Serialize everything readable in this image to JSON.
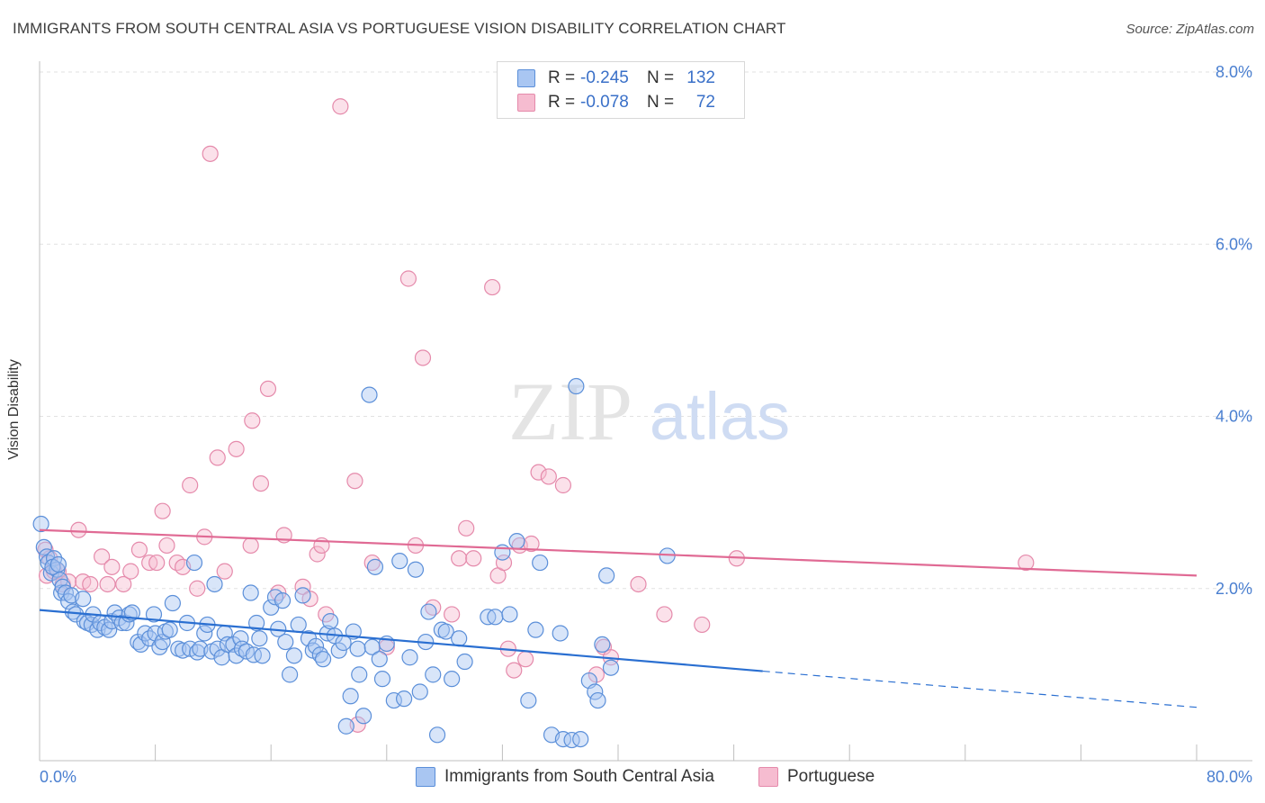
{
  "header": {
    "title": "IMMIGRANTS FROM SOUTH CENTRAL ASIA VS PORTUGUESE VISION DISABILITY CORRELATION CHART",
    "source": "Source: ZipAtlas.com"
  },
  "watermark": {
    "zip": "ZIP",
    "atlas": "atlas"
  },
  "legend": {
    "rows": [
      {
        "r_label": "R =",
        "r_value": "-0.245",
        "n_label": "N =",
        "n_value": "132"
      },
      {
        "r_label": "R =",
        "r_value": "-0.078",
        "n_label": "N =",
        "n_value": "72"
      }
    ]
  },
  "bottom_legend": {
    "series_a": "Immigrants from South Central Asia",
    "series_b": "Portuguese"
  },
  "colors": {
    "blue_fill": "#a9c6f2",
    "blue_stroke": "#5b8fd9",
    "blue_line": "#2a6fd1",
    "pink_fill": "#f6bcd0",
    "pink_stroke": "#e58aab",
    "pink_line": "#e06a94",
    "tick_label": "#4a7fd0",
    "grid": "#e2e2e2"
  },
  "chart_data": {
    "type": "scatter",
    "title": "IMMIGRANTS FROM SOUTH CENTRAL ASIA VS PORTUGUESE VISION DISABILITY CORRELATION CHART",
    "ylabel": "Vision Disability",
    "xlabel": "",
    "xlim": [
      0,
      80
    ],
    "ylim": [
      0,
      8.0
    ],
    "x_tick_labels": [
      "0.0%",
      "80.0%"
    ],
    "y_ticks": [
      2.0,
      4.0,
      6.0,
      8.0
    ],
    "y_tick_labels": [
      "2.0%",
      "4.0%",
      "6.0%",
      "8.0%"
    ],
    "grid": true,
    "series": [
      {
        "name": "Immigrants from South Central Asia",
        "color": "#5b8fd9",
        "r": -0.245,
        "n": 132,
        "trend": {
          "x0": 0,
          "y0": 1.75,
          "x1": 50,
          "y1": 1.04,
          "dashed_to_x": 80,
          "dashed_to_y": 0.62
        },
        "points": [
          [
            0.1,
            2.75
          ],
          [
            0.3,
            2.48
          ],
          [
            0.5,
            2.37
          ],
          [
            0.6,
            2.3
          ],
          [
            0.8,
            2.18
          ],
          [
            1.0,
            2.35
          ],
          [
            1.2,
            2.22
          ],
          [
            1.4,
            2.1
          ],
          [
            1.5,
            1.95
          ],
          [
            1.6,
            2.02
          ],
          [
            1.8,
            1.95
          ],
          [
            2.0,
            1.85
          ],
          [
            2.2,
            1.92
          ],
          [
            2.3,
            1.73
          ],
          [
            2.5,
            1.7
          ],
          [
            3.0,
            1.88
          ],
          [
            3.1,
            1.62
          ],
          [
            3.3,
            1.6
          ],
          [
            3.6,
            1.58
          ],
          [
            3.7,
            1.7
          ],
          [
            4.0,
            1.52
          ],
          [
            4.2,
            1.6
          ],
          [
            4.5,
            1.55
          ],
          [
            4.8,
            1.52
          ],
          [
            5.0,
            1.62
          ],
          [
            5.2,
            1.72
          ],
          [
            5.5,
            1.66
          ],
          [
            5.7,
            1.6
          ],
          [
            6.0,
            1.6
          ],
          [
            6.2,
            1.7
          ],
          [
            6.4,
            1.72
          ],
          [
            6.8,
            1.38
          ],
          [
            7.0,
            1.35
          ],
          [
            7.3,
            1.48
          ],
          [
            7.6,
            1.42
          ],
          [
            7.9,
            1.7
          ],
          [
            8.0,
            1.48
          ],
          [
            8.3,
            1.32
          ],
          [
            8.5,
            1.38
          ],
          [
            8.7,
            1.5
          ],
          [
            9.0,
            1.52
          ],
          [
            9.2,
            1.83
          ],
          [
            9.6,
            1.3
          ],
          [
            9.9,
            1.28
          ],
          [
            10.2,
            1.6
          ],
          [
            10.4,
            1.3
          ],
          [
            10.7,
            2.3
          ],
          [
            10.9,
            1.26
          ],
          [
            11.1,
            1.3
          ],
          [
            11.4,
            1.48
          ],
          [
            11.6,
            1.58
          ],
          [
            11.9,
            1.27
          ],
          [
            12.1,
            2.05
          ],
          [
            12.3,
            1.3
          ],
          [
            12.6,
            1.2
          ],
          [
            12.8,
            1.48
          ],
          [
            13.0,
            1.35
          ],
          [
            13.4,
            1.35
          ],
          [
            13.6,
            1.22
          ],
          [
            13.9,
            1.42
          ],
          [
            14.0,
            1.3
          ],
          [
            14.3,
            1.27
          ],
          [
            14.6,
            1.95
          ],
          [
            14.8,
            1.23
          ],
          [
            15.0,
            1.6
          ],
          [
            15.2,
            1.42
          ],
          [
            15.4,
            1.22
          ],
          [
            16.0,
            1.78
          ],
          [
            16.3,
            1.9
          ],
          [
            16.5,
            1.53
          ],
          [
            16.8,
            1.86
          ],
          [
            17.0,
            1.38
          ],
          [
            17.3,
            1.0
          ],
          [
            17.6,
            1.22
          ],
          [
            17.9,
            1.58
          ],
          [
            18.2,
            1.92
          ],
          [
            18.6,
            1.42
          ],
          [
            18.9,
            1.28
          ],
          [
            19.1,
            1.33
          ],
          [
            19.4,
            1.23
          ],
          [
            19.6,
            1.18
          ],
          [
            19.9,
            1.48
          ],
          [
            20.1,
            1.62
          ],
          [
            20.4,
            1.45
          ],
          [
            20.7,
            1.28
          ],
          [
            21.0,
            1.37
          ],
          [
            21.2,
            0.4
          ],
          [
            21.5,
            0.75
          ],
          [
            21.7,
            1.5
          ],
          [
            22.0,
            1.3
          ],
          [
            22.1,
            1.0
          ],
          [
            22.4,
            0.52
          ],
          [
            22.8,
            4.25
          ],
          [
            23.0,
            1.32
          ],
          [
            23.2,
            2.25
          ],
          [
            23.5,
            1.18
          ],
          [
            23.7,
            0.95
          ],
          [
            24.0,
            1.36
          ],
          [
            24.5,
            0.7
          ],
          [
            24.9,
            2.32
          ],
          [
            25.2,
            0.72
          ],
          [
            25.6,
            1.2
          ],
          [
            26.0,
            2.22
          ],
          [
            26.3,
            0.8
          ],
          [
            26.7,
            1.38
          ],
          [
            26.9,
            1.73
          ],
          [
            27.2,
            1.0
          ],
          [
            27.5,
            0.3
          ],
          [
            27.8,
            1.52
          ],
          [
            28.1,
            1.5
          ],
          [
            28.5,
            0.95
          ],
          [
            29.0,
            1.42
          ],
          [
            29.4,
            1.15
          ],
          [
            31.0,
            1.67
          ],
          [
            31.5,
            1.67
          ],
          [
            32.0,
            2.42
          ],
          [
            32.5,
            1.7
          ],
          [
            33.0,
            2.55
          ],
          [
            33.8,
            0.7
          ],
          [
            34.3,
            1.52
          ],
          [
            34.6,
            2.3
          ],
          [
            35.4,
            0.3
          ],
          [
            36.0,
            1.48
          ],
          [
            36.2,
            0.25
          ],
          [
            36.8,
            0.24
          ],
          [
            37.1,
            4.35
          ],
          [
            37.4,
            0.25
          ],
          [
            38.0,
            0.93
          ],
          [
            38.4,
            0.8
          ],
          [
            38.6,
            0.7
          ],
          [
            38.9,
            1.35
          ],
          [
            39.2,
            2.15
          ],
          [
            39.5,
            1.08
          ],
          [
            43.4,
            2.38
          ],
          [
            0.9,
            2.25
          ],
          [
            1.3,
            2.28
          ]
        ]
      },
      {
        "name": "Portuguese",
        "color": "#e58aab",
        "r": -0.078,
        "n": 72,
        "trend": {
          "x0": 0,
          "y0": 2.68,
          "x1": 80,
          "y1": 2.15
        },
        "points": [
          [
            0.4,
            2.45
          ],
          [
            0.5,
            2.15
          ],
          [
            0.7,
            2.35
          ],
          [
            1.0,
            2.2
          ],
          [
            1.3,
            2.2
          ],
          [
            1.6,
            2.05
          ],
          [
            2.0,
            2.08
          ],
          [
            2.7,
            2.68
          ],
          [
            3.0,
            2.08
          ],
          [
            3.5,
            2.05
          ],
          [
            4.3,
            2.37
          ],
          [
            4.7,
            2.05
          ],
          [
            5.0,
            2.25
          ],
          [
            5.8,
            2.05
          ],
          [
            6.3,
            2.2
          ],
          [
            6.9,
            2.45
          ],
          [
            7.6,
            2.3
          ],
          [
            8.1,
            2.3
          ],
          [
            8.5,
            2.9
          ],
          [
            8.8,
            2.5
          ],
          [
            9.5,
            2.3
          ],
          [
            9.9,
            2.25
          ],
          [
            10.4,
            3.2
          ],
          [
            10.9,
            2.0
          ],
          [
            11.4,
            2.6
          ],
          [
            11.8,
            7.05
          ],
          [
            12.3,
            3.52
          ],
          [
            12.8,
            2.2
          ],
          [
            13.6,
            3.62
          ],
          [
            14.6,
            2.5
          ],
          [
            14.7,
            3.95
          ],
          [
            15.3,
            3.22
          ],
          [
            15.8,
            4.32
          ],
          [
            16.5,
            1.95
          ],
          [
            16.9,
            2.62
          ],
          [
            18.2,
            2.02
          ],
          [
            18.7,
            1.88
          ],
          [
            19.2,
            2.4
          ],
          [
            19.5,
            2.5
          ],
          [
            19.8,
            1.7
          ],
          [
            20.8,
            7.6
          ],
          [
            21.8,
            3.25
          ],
          [
            22.0,
            0.42
          ],
          [
            23.0,
            2.3
          ],
          [
            24.0,
            1.32
          ],
          [
            25.5,
            5.6
          ],
          [
            26.0,
            2.5
          ],
          [
            26.5,
            4.68
          ],
          [
            27.2,
            1.78
          ],
          [
            28.5,
            1.7
          ],
          [
            29.0,
            2.35
          ],
          [
            29.5,
            2.7
          ],
          [
            30.0,
            2.35
          ],
          [
            31.3,
            5.5
          ],
          [
            31.7,
            2.15
          ],
          [
            32.1,
            2.3
          ],
          [
            32.4,
            1.3
          ],
          [
            32.8,
            1.05
          ],
          [
            33.2,
            2.5
          ],
          [
            33.6,
            1.18
          ],
          [
            34.0,
            2.52
          ],
          [
            34.5,
            3.35
          ],
          [
            35.2,
            3.3
          ],
          [
            36.2,
            3.2
          ],
          [
            38.5,
            1.0
          ],
          [
            39.0,
            1.32
          ],
          [
            39.5,
            1.2
          ],
          [
            41.4,
            2.05
          ],
          [
            43.2,
            1.7
          ],
          [
            45.8,
            1.58
          ],
          [
            48.2,
            2.35
          ],
          [
            68.2,
            2.3
          ]
        ]
      }
    ]
  }
}
